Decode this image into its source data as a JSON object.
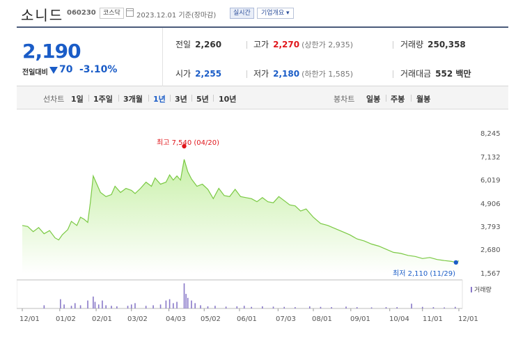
{
  "header": {
    "name": "소니드",
    "code": "060230",
    "market": "코스닥",
    "date": "2023.12.01 기준(장마감)",
    "realtime_label": "실시간",
    "company_label": "기업개요 ▾"
  },
  "quote": {
    "price": "2,190",
    "change_label": "전일대비",
    "change_value": "70",
    "change_pct": "-3.10%",
    "prev_close_label": "전일",
    "prev_close": "2,260",
    "high_label": "고가",
    "high": "2,270",
    "high_limit": "(상한가 2,935)",
    "volume_label": "거래량",
    "volume": "250,358",
    "open_label": "시가",
    "open": "2,255",
    "low_label": "저가",
    "low": "2,180",
    "low_limit": "(하한가 1,585)",
    "amount_label": "거래대금",
    "amount": "552 백만"
  },
  "periods": {
    "line_label": "선차트",
    "line_tabs": [
      "1일",
      "1주일",
      "3개월",
      "1년",
      "3년",
      "5년",
      "10년"
    ],
    "active": "1년",
    "candle_label": "봉차트",
    "candle_tabs": [
      "일봉",
      "주봉",
      "월봉"
    ]
  },
  "annotations": {
    "high": "최고 7,540 (04/20)",
    "low": "최저 2,110 (11/29)",
    "volume_legend": "거래량"
  },
  "colors": {
    "price_line": "#7ac943",
    "area_top": "#c8f0a8",
    "volume": "#8878c8",
    "high_marker": "#e0161b",
    "low_marker": "#1a5cc7"
  },
  "chart_data": {
    "type": "area",
    "y_ticks": [
      "8,245",
      "7,132",
      "6,019",
      "4,906",
      "3,793",
      "2,680",
      "1,567"
    ],
    "ylim": [
      1567,
      8245
    ],
    "x_ticks": [
      "12/01",
      "01/02",
      "02/01",
      "03/02",
      "04/03",
      "05/02",
      "06/01",
      "07/03",
      "08/01",
      "09/01",
      "10/04",
      "11/01",
      "12/01"
    ],
    "x_tick_pos": [
      0,
      1.03,
      2.03,
      3.0,
      4.03,
      5.0,
      5.97,
      7.03,
      8.0,
      9.03,
      10.1,
      11.0,
      12.0
    ],
    "series": [
      {
        "x": [
          0,
          0.15,
          0.3,
          0.45,
          0.6,
          0.75,
          0.9,
          1.0,
          1.1,
          1.25,
          1.35,
          1.5,
          1.6,
          1.7,
          1.8,
          1.87,
          1.95,
          2.05,
          2.15,
          2.3,
          2.45,
          2.55,
          2.7,
          2.85,
          3.0,
          3.1,
          3.25,
          3.4,
          3.55,
          3.65,
          3.8,
          3.95,
          4.05,
          4.15,
          4.25,
          4.35,
          4.45,
          4.55,
          4.65,
          4.8,
          4.95,
          5.1,
          5.25,
          5.4,
          5.55,
          5.7,
          5.85,
          6.0,
          6.15,
          6.3,
          6.45,
          6.6,
          6.75,
          6.9,
          7.05,
          7.2,
          7.35,
          7.5,
          7.65,
          7.8,
          8.0,
          8.2,
          8.4,
          8.6,
          8.8,
          9.0,
          9.2,
          9.4,
          9.6,
          9.8,
          10.0,
          10.2,
          10.4,
          10.6,
          10.8,
          11.0,
          11.2,
          11.4,
          11.6,
          11.8,
          11.92,
          12.0
        ],
        "values": [
          3900,
          3850,
          3600,
          3800,
          3500,
          3650,
          3300,
          3200,
          3450,
          3700,
          4100,
          3900,
          4300,
          4200,
          4050,
          5000,
          6300,
          5900,
          5500,
          5300,
          5400,
          5800,
          5500,
          5700,
          5600,
          5450,
          5700,
          6000,
          5800,
          6200,
          5900,
          6000,
          6350,
          6100,
          6300,
          6100,
          7100,
          6500,
          6150,
          5800,
          5900,
          5650,
          5200,
          5700,
          5350,
          5300,
          5650,
          5300,
          5250,
          5200,
          5050,
          5250,
          5050,
          5000,
          5300,
          5100,
          4900,
          4850,
          4600,
          4700,
          4300,
          4000,
          3900,
          3750,
          3600,
          3450,
          3250,
          3150,
          3000,
          2900,
          2750,
          2600,
          2550,
          2450,
          2400,
          2300,
          2350,
          2250,
          2200,
          2160,
          2110,
          2190
        ]
      }
    ],
    "volume_x": [
      0.6,
      1.05,
      1.15,
      1.35,
      1.45,
      1.6,
      1.8,
      1.95,
      2.0,
      2.1,
      2.2,
      2.3,
      2.45,
      2.6,
      2.9,
      3.0,
      3.1,
      3.4,
      3.6,
      3.8,
      3.95,
      4.05,
      4.15,
      4.25,
      4.45,
      4.5,
      4.55,
      4.65,
      4.75,
      4.9,
      5.1,
      5.3,
      5.6,
      5.9,
      6.1,
      6.3,
      6.6,
      6.9,
      7.2,
      7.5,
      7.9,
      8.2,
      8.5,
      8.9,
      9.2,
      9.6,
      10.0,
      10.3,
      10.7,
      11.0,
      11.3,
      11.6,
      11.9
    ],
    "volume": [
      0.12,
      0.35,
      0.15,
      0.1,
      0.2,
      0.12,
      0.3,
      0.45,
      0.25,
      0.15,
      0.3,
      0.12,
      0.1,
      0.08,
      0.1,
      0.15,
      0.2,
      0.1,
      0.12,
      0.15,
      0.3,
      0.35,
      0.2,
      0.25,
      0.95,
      0.55,
      0.4,
      0.3,
      0.2,
      0.12,
      0.08,
      0.1,
      0.07,
      0.08,
      0.1,
      0.06,
      0.08,
      0.07,
      0.06,
      0.05,
      0.08,
      0.06,
      0.05,
      0.07,
      0.05,
      0.04,
      0.05,
      0.05,
      0.18,
      0.06,
      0.05,
      0.04,
      0.06
    ]
  }
}
